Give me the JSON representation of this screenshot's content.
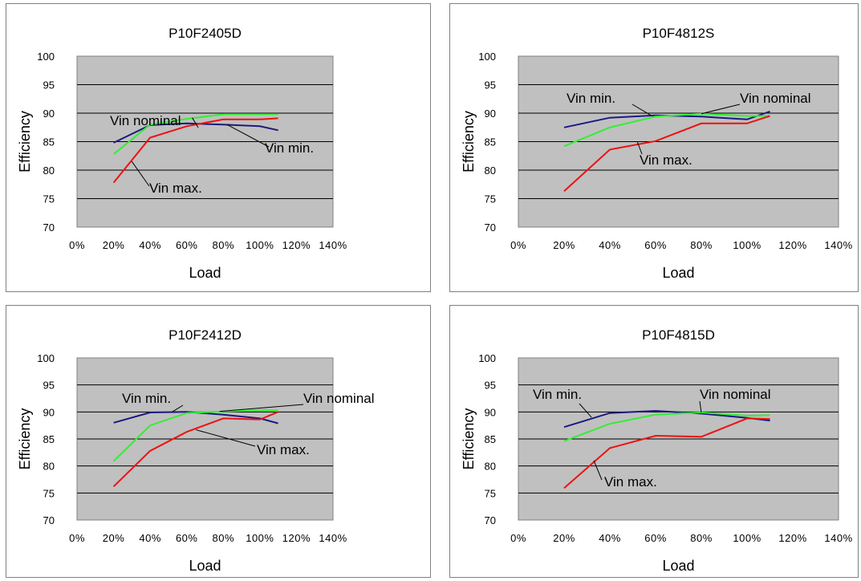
{
  "chart_data": [
    {
      "type": "line",
      "title": "P10F2405D",
      "xlabel": "Load",
      "ylabel": "Efficiency",
      "xlim": [
        0,
        140
      ],
      "ylim": [
        70,
        100
      ],
      "x_ticks": [
        "0%",
        "20%",
        "40%",
        "60%",
        "80%",
        "100%",
        "120%",
        "140%"
      ],
      "y_ticks": [
        "70",
        "75",
        "80",
        "85",
        "90",
        "95",
        "100"
      ],
      "grid": "horizontal",
      "series": [
        {
          "name": "Vin min.",
          "color": "#1a1a80",
          "x": [
            20,
            40,
            60,
            80,
            100,
            110
          ],
          "y": [
            84.8,
            87.9,
            88.2,
            88.0,
            87.7,
            87.0
          ]
        },
        {
          "name": "Vin nominal",
          "color": "#33ee33",
          "x": [
            20,
            40,
            60,
            80,
            100,
            110
          ],
          "y": [
            82.8,
            88.0,
            89.0,
            89.8,
            89.8,
            89.8
          ]
        },
        {
          "name": "Vin max.",
          "color": "#ee1111",
          "x": [
            20,
            40,
            60,
            80,
            100,
            110
          ],
          "y": [
            77.8,
            85.7,
            87.7,
            88.9,
            88.9,
            89.1
          ]
        }
      ]
    },
    {
      "type": "line",
      "title": "P10F4812S",
      "xlabel": "Load",
      "ylabel": "Efficiency",
      "xlim": [
        0,
        140
      ],
      "ylim": [
        70,
        100
      ],
      "x_ticks": [
        "0%",
        "20%",
        "40%",
        "60%",
        "80%",
        "100%",
        "120%",
        "140%"
      ],
      "y_ticks": [
        "70",
        "75",
        "80",
        "85",
        "90",
        "95",
        "100"
      ],
      "grid": "horizontal",
      "series": [
        {
          "name": "Vin min.",
          "color": "#1a1a80",
          "x": [
            20,
            40,
            60,
            80,
            100,
            110
          ],
          "y": [
            87.5,
            89.2,
            89.6,
            89.4,
            88.9,
            90.3
          ]
        },
        {
          "name": "Vin nominal",
          "color": "#33ee33",
          "x": [
            20,
            40,
            60,
            80,
            100,
            110
          ],
          "y": [
            84.2,
            87.5,
            89.4,
            89.9,
            89.5,
            89.5
          ]
        },
        {
          "name": "Vin max.",
          "color": "#ee1111",
          "x": [
            20,
            40,
            60,
            80,
            100,
            110
          ],
          "y": [
            76.3,
            83.6,
            85.1,
            88.2,
            88.2,
            89.5
          ]
        }
      ]
    },
    {
      "type": "line",
      "title": "P10F2412D",
      "xlabel": "Load",
      "ylabel": "Efficiency",
      "xlim": [
        0,
        140
      ],
      "ylim": [
        70,
        100
      ],
      "x_ticks": [
        "0%",
        "20%",
        "40%",
        "60%",
        "80%",
        "100%",
        "120%",
        "140%"
      ],
      "y_ticks": [
        "70",
        "75",
        "80",
        "85",
        "90",
        "95",
        "100"
      ],
      "grid": "horizontal",
      "series": [
        {
          "name": "Vin min.",
          "color": "#1a1a80",
          "x": [
            20,
            40,
            60,
            80,
            100,
            110
          ],
          "y": [
            88.0,
            89.9,
            90.0,
            89.5,
            88.8,
            87.9
          ]
        },
        {
          "name": "Vin nominal",
          "color": "#33ee33",
          "x": [
            20,
            40,
            60,
            80,
            100,
            110
          ],
          "y": [
            80.9,
            87.5,
            89.8,
            90.1,
            90.3,
            90.3
          ]
        },
        {
          "name": "Vin max.",
          "color": "#ee1111",
          "x": [
            20,
            40,
            60,
            80,
            100,
            110
          ],
          "y": [
            76.2,
            82.8,
            86.3,
            88.8,
            88.6,
            90.0
          ]
        }
      ]
    },
    {
      "type": "line",
      "title": "P10F4815D",
      "xlabel": "Load",
      "ylabel": "Efficiency",
      "xlim": [
        0,
        140
      ],
      "ylim": [
        70,
        100
      ],
      "x_ticks": [
        "0%",
        "20%",
        "40%",
        "60%",
        "80%",
        "100%",
        "120%",
        "140%"
      ],
      "y_ticks": [
        "70",
        "75",
        "80",
        "85",
        "90",
        "95",
        "100"
      ],
      "grid": "horizontal",
      "series": [
        {
          "name": "Vin min.",
          "color": "#1a1a80",
          "x": [
            20,
            40,
            60,
            80,
            100,
            110
          ],
          "y": [
            87.2,
            89.8,
            90.2,
            89.7,
            88.9,
            88.4
          ]
        },
        {
          "name": "Vin nominal",
          "color": "#33ee33",
          "x": [
            20,
            40,
            60,
            80,
            100,
            110
          ],
          "y": [
            84.6,
            87.8,
            89.5,
            89.9,
            89.3,
            89.4
          ]
        },
        {
          "name": "Vin max.",
          "color": "#ee1111",
          "x": [
            20,
            40,
            60,
            80,
            100,
            110
          ],
          "y": [
            75.9,
            83.3,
            85.6,
            85.4,
            88.8,
            88.7
          ]
        }
      ]
    }
  ]
}
